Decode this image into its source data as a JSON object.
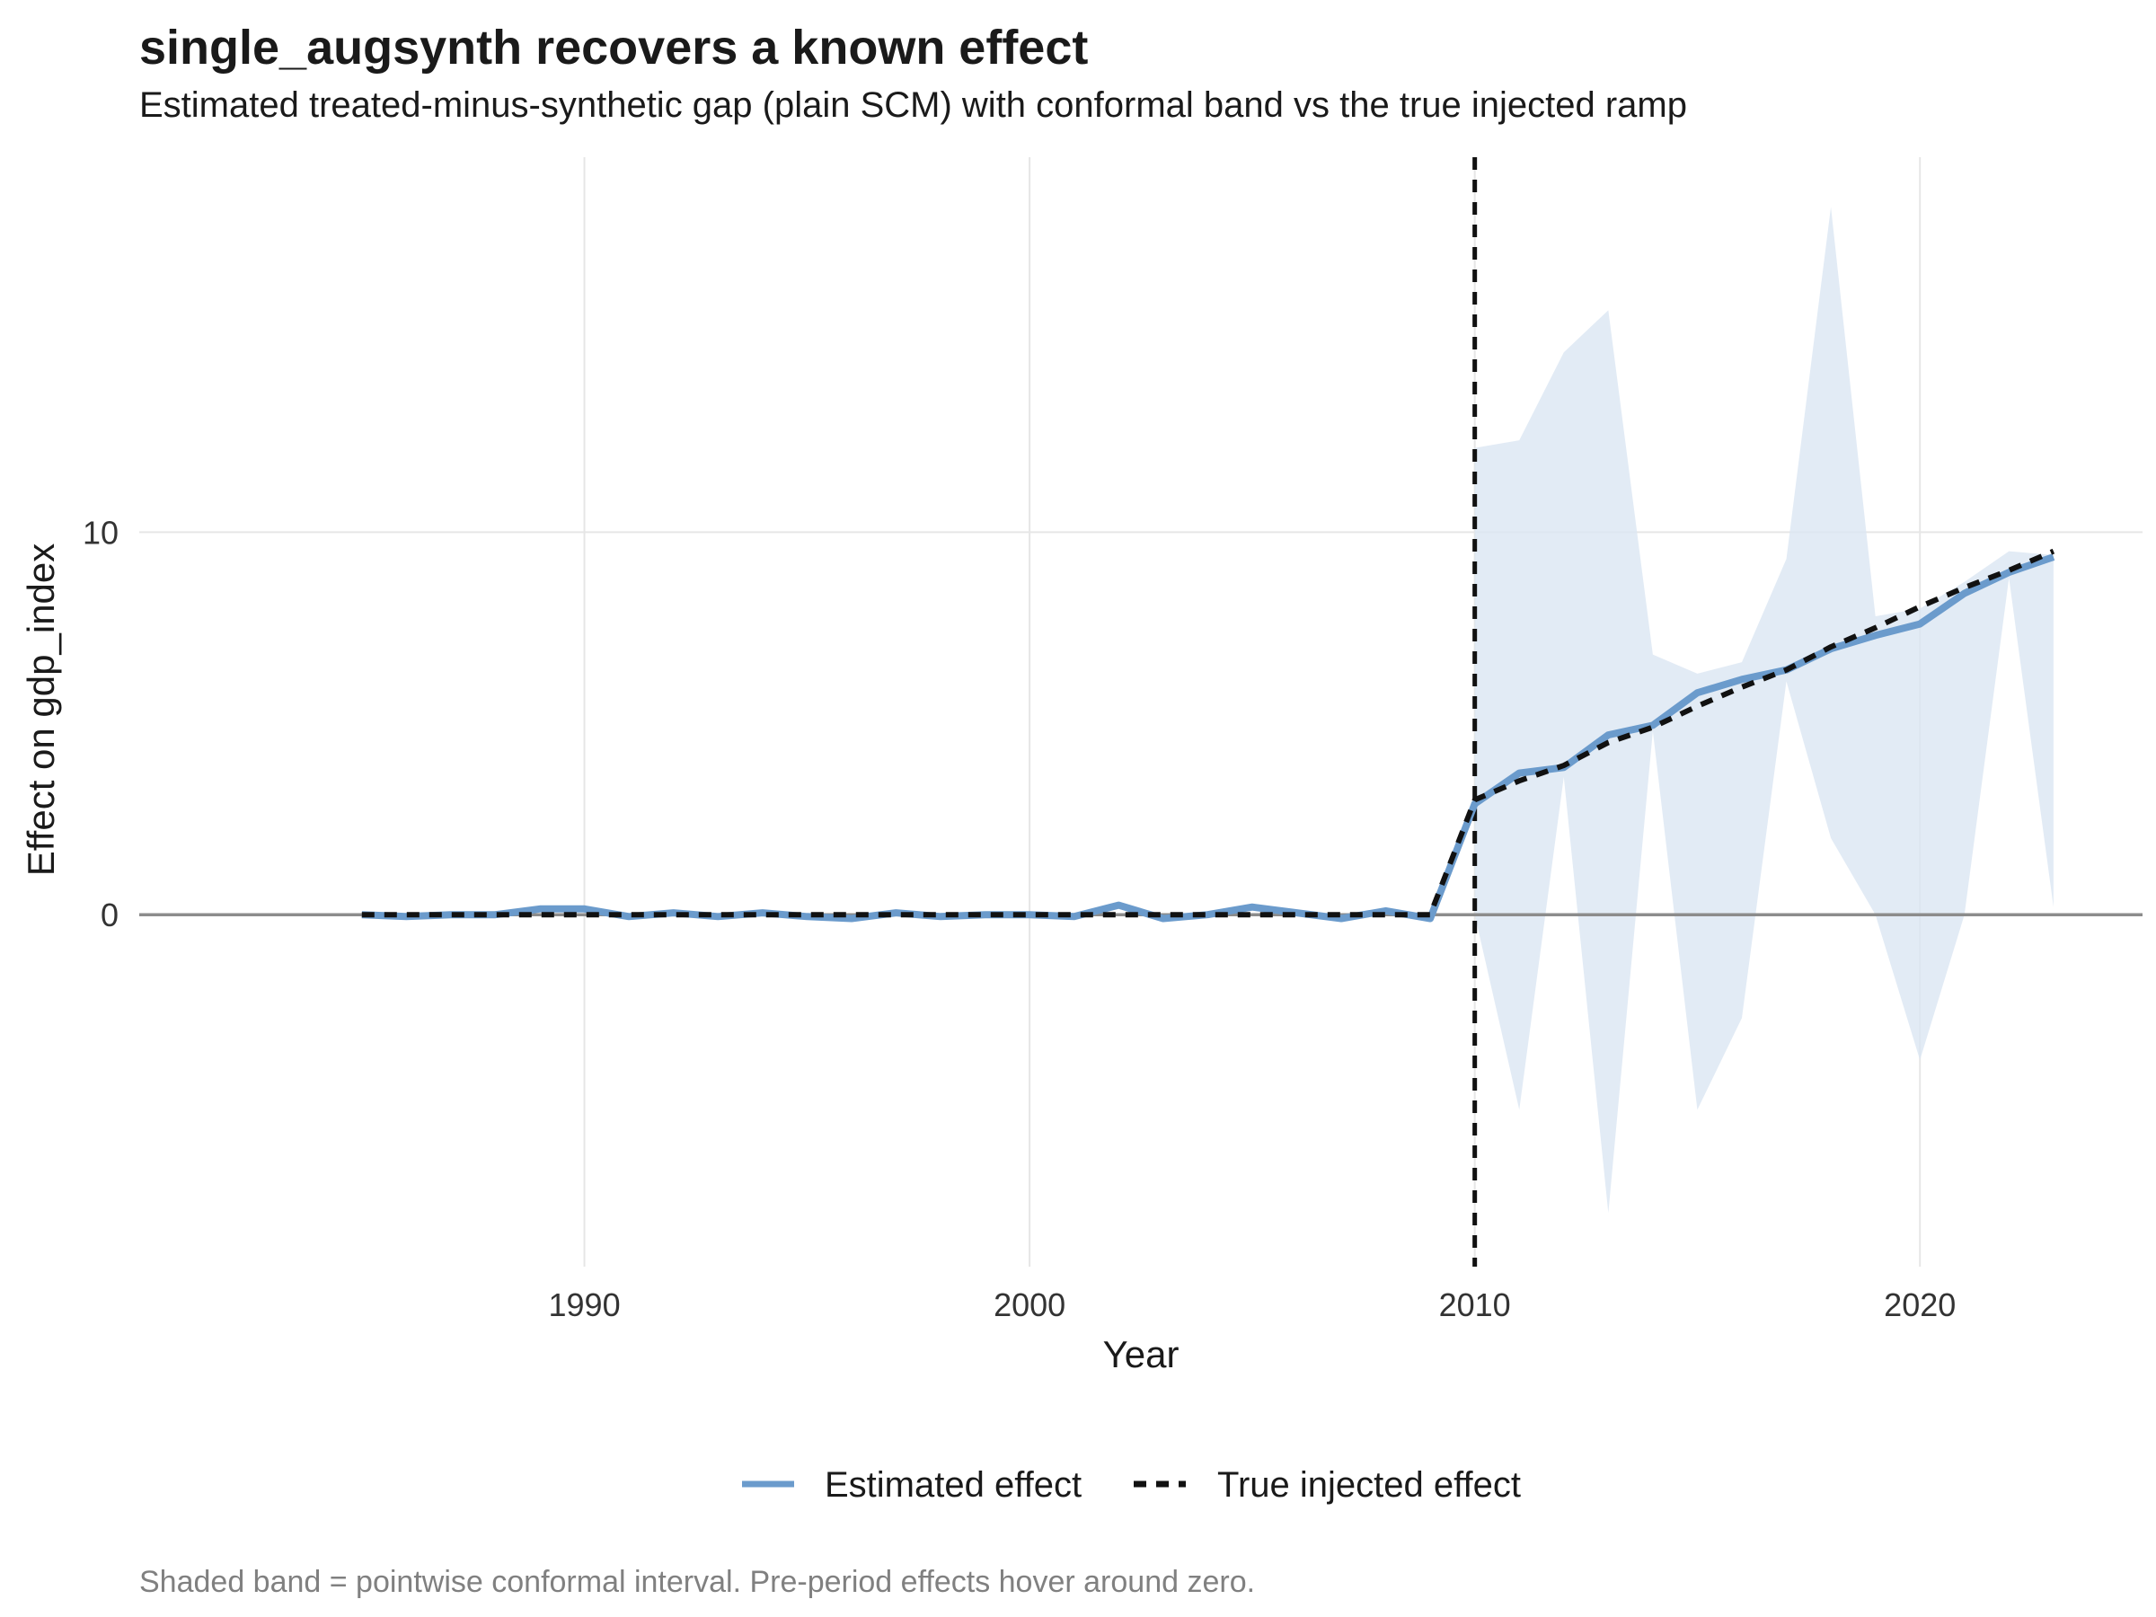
{
  "chart_data": {
    "type": "line",
    "title": "single_augsynth recovers a known effect",
    "subtitle": "Estimated treated-minus-synthetic gap (plain SCM) with conformal band vs the true injected ramp",
    "caption": "Shaded band = pointwise conformal interval. Pre-period effects hover around zero.",
    "xlabel": "Year",
    "ylabel": "Effect on gdp_index",
    "xlim": [
      1980,
      2025
    ],
    "ylim": [
      -9.2,
      19.8
    ],
    "xticks": [
      1990,
      2000,
      2010,
      2020
    ],
    "yticks": [
      0,
      10
    ],
    "grid": true,
    "treatment_year": 2010,
    "legend_position": "bottom",
    "colors": {
      "estimated": "#6b9bcc",
      "true": "#111111",
      "band": "#dbe6f3",
      "zero_line": "#8c8c8c",
      "vline": "#111111",
      "grid": "#e6e6e6"
    },
    "x": [
      1985,
      1986,
      1987,
      1988,
      1989,
      1990,
      1991,
      1992,
      1993,
      1994,
      1995,
      1996,
      1997,
      1998,
      1999,
      2000,
      2001,
      2002,
      2003,
      2004,
      2005,
      2006,
      2007,
      2008,
      2009,
      2010,
      2011,
      2012,
      2013,
      2014,
      2015,
      2016,
      2017,
      2018,
      2019,
      2020,
      2021,
      2022,
      2023
    ],
    "series": [
      {
        "name": "Estimated effect",
        "style": "solid",
        "values": [
          0.0,
          -0.05,
          0.0,
          0.0,
          0.15,
          0.15,
          -0.05,
          0.05,
          -0.05,
          0.05,
          -0.05,
          -0.1,
          0.05,
          -0.05,
          0.0,
          0.0,
          -0.05,
          0.25,
          -0.1,
          0.0,
          0.2,
          0.05,
          -0.1,
          0.1,
          -0.1,
          2.9,
          3.7,
          3.85,
          4.7,
          4.95,
          5.8,
          6.15,
          6.4,
          6.95,
          7.3,
          7.6,
          8.4,
          8.95,
          9.35
        ]
      },
      {
        "name": "True injected effect",
        "style": "dashed",
        "values": [
          0,
          0,
          0,
          0,
          0,
          0,
          0,
          0,
          0,
          0,
          0,
          0,
          0,
          0,
          0,
          0,
          0,
          0,
          0,
          0,
          0,
          0,
          0,
          0,
          0,
          3.0,
          3.5,
          3.9,
          4.5,
          4.9,
          5.45,
          5.95,
          6.4,
          7.0,
          7.5,
          8.05,
          8.55,
          9.0,
          9.5
        ]
      }
    ],
    "band": {
      "x": [
        2010,
        2011,
        2012,
        2013,
        2014,
        2015,
        2016,
        2017,
        2018,
        2019,
        2020,
        2021,
        2022,
        2023
      ],
      "upper": [
        12.2,
        12.4,
        14.7,
        15.8,
        6.8,
        6.3,
        6.6,
        9.3,
        18.5,
        7.8,
        8.0,
        8.7,
        9.5,
        9.4
      ],
      "lower": [
        0.0,
        -5.1,
        3.6,
        -7.8,
        4.8,
        -5.1,
        -2.7,
        6.1,
        2.0,
        0.0,
        -3.8,
        0.0,
        8.8,
        0.2
      ]
    },
    "legend": [
      {
        "label": "Estimated effect",
        "style": "solid"
      },
      {
        "label": "True injected effect",
        "style": "dashed"
      }
    ]
  }
}
